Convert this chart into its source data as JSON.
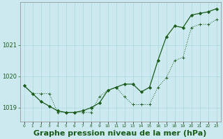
{
  "hours": [
    0,
    1,
    2,
    3,
    4,
    5,
    6,
    7,
    8,
    9,
    10,
    11,
    12,
    13,
    14,
    15,
    16,
    17,
    18,
    19,
    20,
    21,
    22,
    23
  ],
  "series_solid": [
    1019.7,
    1019.45,
    1019.2,
    1019.05,
    1018.9,
    1018.85,
    1018.85,
    1018.9,
    1019.0,
    1019.15,
    1019.55,
    1019.65,
    1019.75,
    1019.75,
    1019.5,
    1019.65,
    1020.5,
    1021.25,
    1021.6,
    1021.55,
    1021.95,
    1022.0,
    1022.05,
    1022.15
  ],
  "series_dotted": [
    1019.7,
    1019.45,
    1019.45,
    1019.45,
    1018.85,
    1018.85,
    1018.85,
    1018.85,
    1018.85,
    1019.35,
    1019.55,
    1019.65,
    1019.35,
    1019.1,
    1019.1,
    1019.1,
    1019.65,
    1019.95,
    1020.5,
    1020.6,
    1021.55,
    1021.65,
    1021.65,
    1021.8
  ],
  "bg_color": "#cce9f0",
  "grid_color": "#aad4dc",
  "line_color": "#1a5c1a",
  "ylabel_ticks": [
    1019,
    1020,
    1021
  ],
  "ylim": [
    1018.55,
    1022.35
  ],
  "xlim": [
    -0.5,
    23.5
  ],
  "xlabel": "Graphe pression niveau de la mer (hPa)",
  "xlabel_fontsize": 8,
  "tick_color": "#1a5c1a",
  "ytick_fontsize": 6,
  "xtick_fontsize": 4.2
}
